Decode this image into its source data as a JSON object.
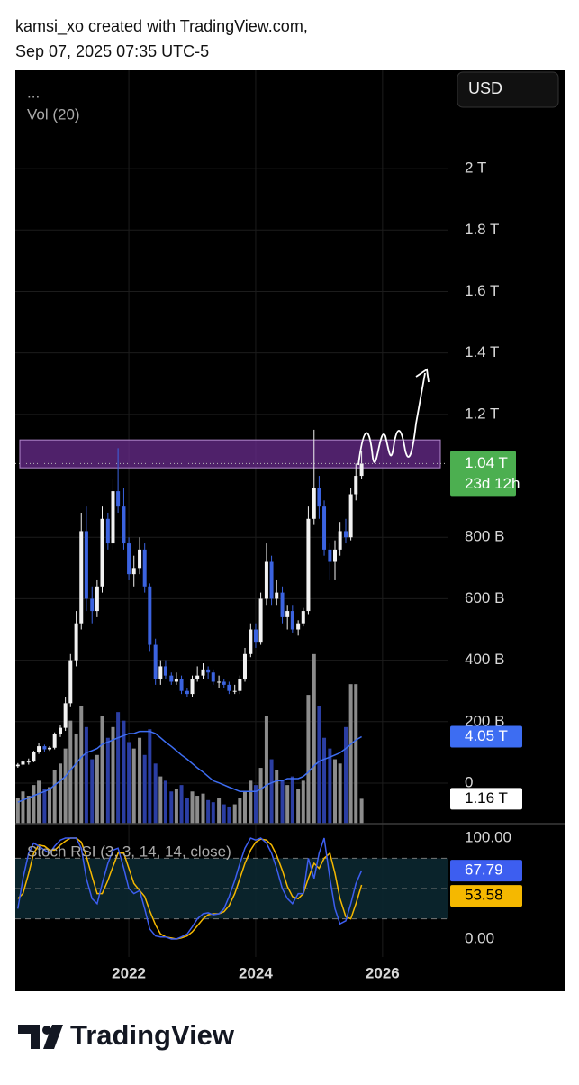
{
  "header": {
    "line1": "kamsi_xo created with TradingView.com,",
    "line2": "Sep 07, 2025 07:35 UTC-5"
  },
  "chart_data": {
    "type": "candlestick",
    "currency": "USD",
    "indicator_label": "...",
    "up_color": "#f2f2f2",
    "down_color": "#3b63e0",
    "grid": true,
    "x": [
      2020.25,
      2020.33,
      2020.42,
      2020.5,
      2020.58,
      2020.67,
      2020.75,
      2020.83,
      2020.92,
      2021,
      2021.08,
      2021.17,
      2021.25,
      2021.33,
      2021.42,
      2021.5,
      2021.58,
      2021.67,
      2021.75,
      2021.83,
      2021.92,
      2022,
      2022.08,
      2022.17,
      2022.25,
      2022.33,
      2022.42,
      2022.5,
      2022.58,
      2022.67,
      2022.75,
      2022.83,
      2022.92,
      2023,
      2023.08,
      2023.17,
      2023.25,
      2023.33,
      2023.42,
      2023.5,
      2023.58,
      2023.67,
      2023.75,
      2023.83,
      2023.92,
      2024,
      2024.08,
      2024.17,
      2024.25,
      2024.33,
      2024.42,
      2024.5,
      2024.58,
      2024.67,
      2024.75,
      2024.83,
      2024.92,
      2025,
      2025.08,
      2025.17,
      2025.25,
      2025.33,
      2025.42,
      2025.5,
      2025.58,
      2025.67
    ],
    "xlim": [
      2020.21,
      2028.87
    ],
    "xticks": [
      2022,
      2024,
      2026
    ],
    "open": [
      55,
      60,
      70,
      70,
      100,
      120,
      110,
      115,
      160,
      180,
      260,
      400,
      520,
      820,
      600,
      560,
      640,
      860,
      780,
      950,
      900,
      780,
      680,
      700,
      760,
      640,
      450,
      340,
      380,
      350,
      330,
      340,
      300,
      290,
      340,
      350,
      370,
      360,
      330,
      330,
      320,
      300,
      300,
      340,
      420,
      500,
      460,
      600,
      720,
      600,
      620,
      540,
      560,
      500,
      520,
      560,
      860,
      960,
      900,
      760,
      720,
      760,
      820,
      800,
      940,
      1000
    ],
    "high": [
      65,
      75,
      80,
      105,
      130,
      125,
      120,
      165,
      190,
      280,
      420,
      560,
      880,
      900,
      640,
      660,
      900,
      880,
      990,
      1090,
      960,
      800,
      740,
      800,
      780,
      650,
      470,
      400,
      400,
      360,
      360,
      350,
      310,
      350,
      380,
      390,
      380,
      370,
      350,
      340,
      330,
      320,
      350,
      440,
      520,
      520,
      620,
      780,
      740,
      660,
      640,
      580,
      580,
      530,
      570,
      900,
      1150,
      1000,
      920,
      780,
      790,
      850,
      860,
      960,
      1040,
      1080
    ],
    "low": [
      50,
      55,
      60,
      68,
      95,
      100,
      105,
      110,
      150,
      170,
      250,
      380,
      500,
      560,
      520,
      540,
      620,
      760,
      760,
      880,
      760,
      660,
      640,
      680,
      620,
      430,
      320,
      320,
      340,
      320,
      320,
      290,
      280,
      280,
      330,
      340,
      340,
      320,
      310,
      310,
      290,
      290,
      290,
      330,
      410,
      440,
      450,
      580,
      580,
      580,
      520,
      500,
      490,
      480,
      510,
      550,
      840,
      860,
      740,
      660,
      660,
      740,
      780,
      790,
      920,
      990
    ],
    "close": [
      60,
      70,
      70,
      100,
      120,
      110,
      115,
      160,
      180,
      260,
      400,
      520,
      820,
      600,
      560,
      640,
      860,
      780,
      950,
      900,
      780,
      680,
      700,
      760,
      640,
      450,
      340,
      380,
      350,
      330,
      340,
      300,
      290,
      340,
      350,
      370,
      360,
      330,
      330,
      320,
      300,
      300,
      340,
      420,
      500,
      460,
      600,
      720,
      600,
      620,
      540,
      560,
      500,
      520,
      560,
      860,
      960,
      900,
      760,
      720,
      760,
      820,
      800,
      940,
      1000,
      1040
    ],
    "ylim": [
      -132,
      2320
    ],
    "yticks": [
      {
        "value": 2000,
        "label": "2 T"
      },
      {
        "value": 1800,
        "label": "1.8 T"
      },
      {
        "value": 1600,
        "label": "1.6 T"
      },
      {
        "value": 1400,
        "label": "1.4 T"
      },
      {
        "value": 1200,
        "label": "1.2 T"
      },
      {
        "value": 800,
        "label": "800 B"
      },
      {
        "value": 600,
        "label": "600 B"
      },
      {
        "value": 400,
        "label": "400 B"
      },
      {
        "value": 200,
        "label": "200 B"
      },
      0
    ],
    "last_label": "1.04 T",
    "countdown": "23d 12h",
    "last_color": "#4caf50",
    "zone": [
      1026,
      1117
    ],
    "zone_color": "#6a2c8e",
    "volume": {
      "title": "Vol (20)",
      "values": [
        1.2,
        1.5,
        1.3,
        1.8,
        2.0,
        1.6,
        1.7,
        2.5,
        2.8,
        3.5,
        4.8,
        4.2,
        5.5,
        4.5,
        3.0,
        3.2,
        5.0,
        4.0,
        4.5,
        5.2,
        4.8,
        3.8,
        3.5,
        4.0,
        3.2,
        4.4,
        2.8,
        2.2,
        2.0,
        1.5,
        1.6,
        1.8,
        1.2,
        1.5,
        1.3,
        1.4,
        1.1,
        1.0,
        1.2,
        0.9,
        0.8,
        0.9,
        1.2,
        1.5,
        2.0,
        1.8,
        2.6,
        5.0,
        3.0,
        2.5,
        2.0,
        1.8,
        2.2,
        1.6,
        2.0,
        6.0,
        7.9,
        5.5,
        4.0,
        3.5,
        3.0,
        2.8,
        4.5,
        6.5,
        6.5,
        1.16
      ],
      "ma": [
        1.0,
        1.1,
        1.2,
        1.3,
        1.4,
        1.5,
        1.6,
        1.8,
        2.0,
        2.2,
        2.5,
        2.8,
        3.1,
        3.3,
        3.4,
        3.5,
        3.7,
        3.8,
        3.9,
        4.0,
        4.1,
        4.2,
        4.2,
        4.3,
        4.3,
        4.3,
        4.2,
        4.0,
        3.8,
        3.6,
        3.4,
        3.2,
        3.0,
        2.8,
        2.6,
        2.4,
        2.2,
        2.0,
        1.9,
        1.8,
        1.7,
        1.6,
        1.5,
        1.5,
        1.5,
        1.5,
        1.6,
        1.8,
        1.9,
        2.0,
        2.0,
        2.1,
        2.1,
        2.1,
        2.2,
        2.4,
        2.7,
        2.9,
        3.0,
        3.1,
        3.2,
        3.3,
        3.5,
        3.7,
        3.9,
        4.05
      ],
      "last_label": "1.16 T",
      "ma_label": "4.05 T",
      "ylim": [
        0,
        35.1
      ],
      "up_color": "#8c8c8c",
      "down_color": "#2b3ea3",
      "ma_color": "#3d6df2"
    },
    "stoch": {
      "title": "Stoch RSI (3, 3, 14, 14, close)",
      "k": [
        30,
        60,
        85,
        95,
        92,
        88,
        85,
        92,
        98,
        100,
        100,
        100,
        90,
        60,
        40,
        35,
        55,
        75,
        88,
        90,
        70,
        50,
        45,
        48,
        30,
        10,
        3,
        2,
        2,
        0,
        0,
        2,
        5,
        12,
        20,
        25,
        26,
        24,
        25,
        30,
        42,
        58,
        75,
        90,
        100,
        98,
        100,
        95,
        85,
        70,
        50,
        40,
        35,
        45,
        45,
        80,
        60,
        85,
        100,
        60,
        30,
        15,
        18,
        35,
        55,
        67.79
      ],
      "d": [
        40,
        45,
        65,
        85,
        93,
        92,
        88,
        88,
        93,
        97,
        100,
        100,
        96,
        82,
        62,
        45,
        45,
        58,
        72,
        85,
        85,
        70,
        55,
        48,
        42,
        28,
        14,
        5,
        2,
        1,
        0,
        1,
        3,
        7,
        13,
        20,
        24,
        25,
        25,
        27,
        33,
        45,
        60,
        75,
        88,
        96,
        99,
        98,
        93,
        83,
        68,
        52,
        42,
        40,
        45,
        60,
        75,
        70,
        80,
        85,
        65,
        40,
        22,
        20,
        35,
        53.58
      ],
      "k_color": "#3d5ef0",
      "d_color": "#f5b800",
      "ylim": [
        -17.9,
        114.3
      ],
      "yticks": [
        {
          "value": 100,
          "label": "100.00"
        },
        {
          "value": 0,
          "label": "0.00"
        }
      ],
      "bands": [
        80,
        50,
        20
      ]
    }
  },
  "footer": {
    "brand": "TradingView"
  }
}
